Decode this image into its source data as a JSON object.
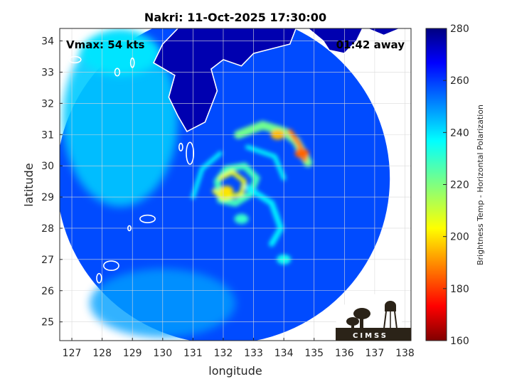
{
  "chart_data": {
    "type": "heatmap",
    "title": "Nakri: 11-Oct-2025 17:30:00",
    "xlabel": "longitude",
    "ylabel": "latitude",
    "xlim": [
      126.6,
      138.2
    ],
    "ylim": [
      24.4,
      34.4
    ],
    "xticks": [
      127,
      128,
      129,
      130,
      131,
      132,
      133,
      134,
      135,
      136,
      137,
      138
    ],
    "yticks": [
      25,
      26,
      27,
      28,
      29,
      30,
      31,
      32,
      33,
      34
    ],
    "grid": true,
    "colorbar": {
      "label": "Brightness Temp - Horizontal Polarization",
      "range": [
        160,
        280
      ],
      "ticks": [
        160,
        180,
        200,
        220,
        240,
        260,
        280
      ],
      "colormap": "jet"
    },
    "annotations": {
      "vmax": "Vmax: 54 kts",
      "time_away": "01:42 away"
    },
    "logo_text": "CIMSS",
    "storm_center": {
      "lon": 132.2,
      "lat": 29.3
    },
    "swath": {
      "center_lon": 132.0,
      "center_lat": 29.6,
      "radius_lon": 5.5,
      "radius_lat": 5.3
    },
    "features": [
      {
        "name": "inner eyewall arc",
        "lon": 132.1,
        "lat": 29.2,
        "value": 200
      },
      {
        "name": "outer band north",
        "lon": 133.8,
        "lat": 31.0,
        "value": 195
      },
      {
        "name": "outer band east",
        "lon": 134.6,
        "lat": 30.4,
        "value": 185
      },
      {
        "name": "southern convection",
        "lon": 132.6,
        "lat": 28.3,
        "value": 230
      },
      {
        "name": "band south-east",
        "lon": 134.0,
        "lat": 27.0,
        "value": 235
      }
    ],
    "background_value": 258,
    "land_value": 275
  }
}
